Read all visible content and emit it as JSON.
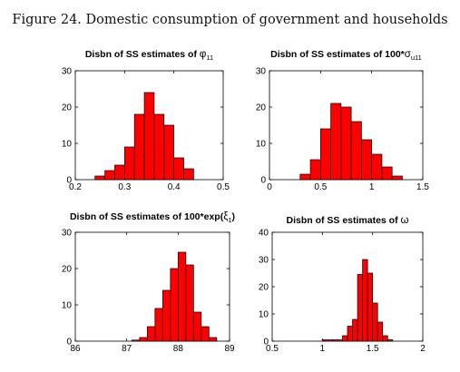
{
  "figure": {
    "title": "Figure 24. Domestic consumption of government and households"
  },
  "chart_data": [
    {
      "type": "bar",
      "title": "Disbn of SS estimates of φ11",
      "title_prefix": "Disbn of SS estimates of ",
      "title_symbol": "φ",
      "title_sub": "11",
      "xlim": [
        0.2,
        0.5
      ],
      "ylim": [
        0,
        30
      ],
      "xticks": [
        0.2,
        0.3,
        0.4,
        0.5
      ],
      "yticks": [
        0,
        10,
        20,
        30
      ],
      "bin_edges": [
        0.24,
        0.26,
        0.28,
        0.3,
        0.32,
        0.34,
        0.36,
        0.38,
        0.4,
        0.42,
        0.44
      ],
      "values": [
        1,
        2.5,
        4,
        9,
        18,
        24,
        18,
        15,
        6,
        3,
        1
      ],
      "bar_color": "#ff0000"
    },
    {
      "type": "bar",
      "title": "Disbn of SS estimates of 100*σu11",
      "title_prefix": "Disbn of SS estimates of 100*",
      "title_symbol": "σ",
      "title_sub": "u11",
      "xlim": [
        0,
        1.5
      ],
      "ylim": [
        0,
        30
      ],
      "xticks": [
        0,
        0.5,
        1,
        1.5
      ],
      "yticks": [
        0,
        10,
        20,
        30
      ],
      "bin_edges": [
        0.3,
        0.4,
        0.5,
        0.6,
        0.7,
        0.8,
        0.9,
        1.0,
        1.1,
        1.2,
        1.3
      ],
      "values": [
        1.5,
        5.5,
        14,
        21,
        20,
        16,
        11,
        7,
        3.5,
        1,
        1.2
      ],
      "bar_color": "#ff0000"
    },
    {
      "type": "bar",
      "title": "Disbn of SS estimates of 100*exp(ξ1)",
      "title_prefix": "Disbn of SS estimates of 100*exp(",
      "title_symbol": "ξ",
      "title_sub": "1",
      "title_suffix": ")",
      "xlim": [
        86,
        89
      ],
      "ylim": [
        0,
        30
      ],
      "xticks": [
        86,
        87,
        88,
        89
      ],
      "yticks": [
        0,
        10,
        20,
        30
      ],
      "bin_edges": [
        87.1,
        87.25,
        87.4,
        87.55,
        87.7,
        87.85,
        88.0,
        88.15,
        88.3,
        88.45,
        88.6,
        88.75
      ],
      "values": [
        0.3,
        1,
        4,
        9,
        14,
        20,
        24.5,
        21,
        8,
        4,
        1,
        0.3
      ],
      "bar_color": "#ff0000"
    },
    {
      "type": "bar",
      "title": "Disbn of SS estimates of ω",
      "title_prefix": "Disbn of SS estimates of ",
      "title_symbol": "ω",
      "title_sub": "",
      "xlim": [
        0.5,
        2
      ],
      "ylim": [
        0,
        40
      ],
      "xticks": [
        0.5,
        1,
        1.5,
        2
      ],
      "yticks": [
        0,
        10,
        20,
        30,
        40
      ],
      "bin_edges": [
        1.0,
        1.1,
        1.2,
        1.25,
        1.3,
        1.35,
        1.4,
        1.45,
        1.5,
        1.55,
        1.6,
        1.65,
        1.7
      ],
      "values": [
        0.5,
        0.5,
        2,
        5.5,
        8,
        24.5,
        30,
        25,
        14,
        7,
        2,
        0.5
      ],
      "bar_color": "#ff0000"
    }
  ]
}
